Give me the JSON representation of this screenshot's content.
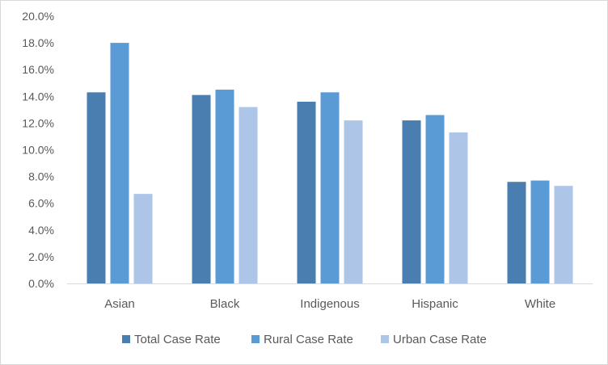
{
  "chart_data": {
    "type": "bar",
    "categories": [
      "Asian",
      "Black",
      "Indigenous",
      "Hispanic",
      "White"
    ],
    "series": [
      {
        "name": "Total Case Rate",
        "color": "#4a7eb0",
        "values": [
          14.3,
          14.1,
          13.6,
          12.2,
          7.6
        ]
      },
      {
        "name": "Rural Case Rate",
        "color": "#5b9bd5",
        "values": [
          18.0,
          14.5,
          14.3,
          12.6,
          7.7
        ]
      },
      {
        "name": "Urban Case Rate",
        "color": "#adc5e7",
        "values": [
          6.7,
          13.2,
          12.2,
          11.3,
          7.3
        ]
      }
    ],
    "ylim": [
      0,
      20
    ],
    "yticks": [
      "0.0%",
      "2.0%",
      "4.0%",
      "6.0%",
      "8.0%",
      "10.0%",
      "12.0%",
      "14.0%",
      "16.0%",
      "18.0%",
      "20.0%"
    ],
    "ytick_values": [
      0,
      2,
      4,
      6,
      8,
      10,
      12,
      14,
      16,
      18,
      20
    ],
    "grid": false,
    "legend_position": "bottom"
  }
}
